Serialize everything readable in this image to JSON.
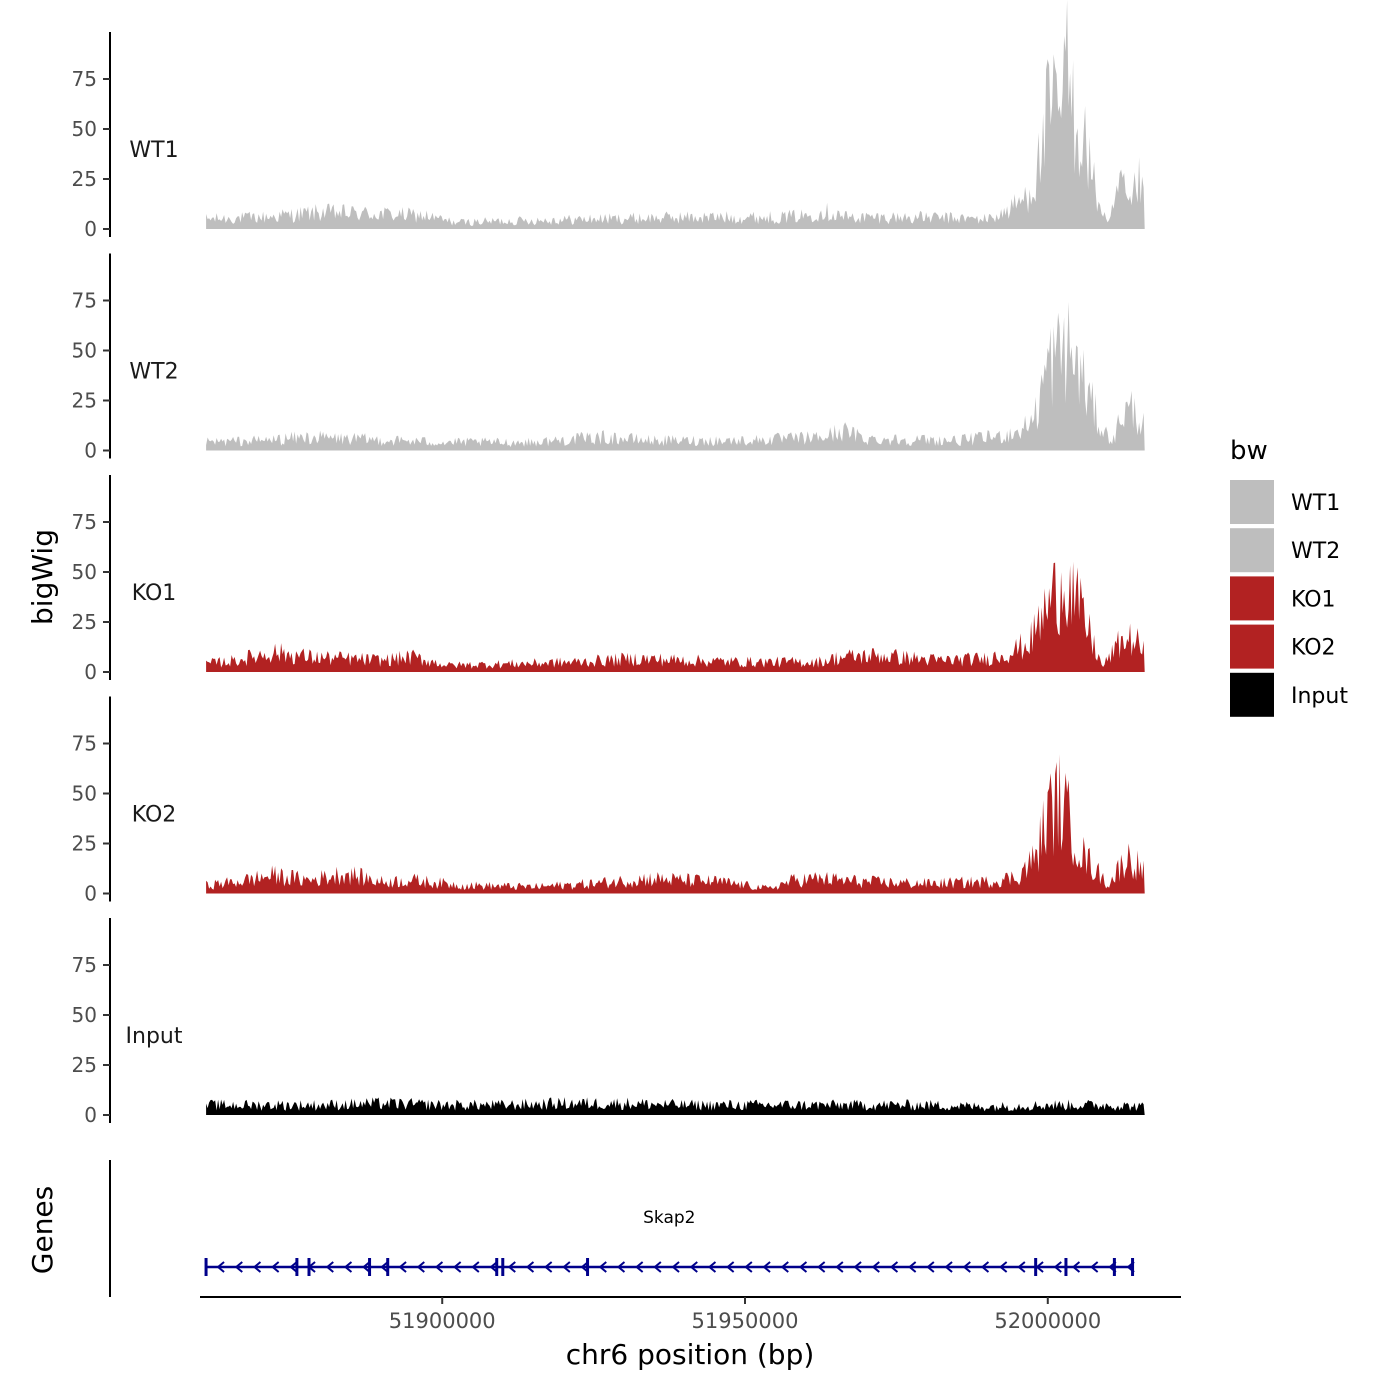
{
  "chart_data": {
    "type": "area",
    "title": "",
    "ylabel": "bigWig",
    "xlabel": "chr6 position (bp)",
    "xlim": [
      51860000,
      52022000
    ],
    "ylim": [
      0,
      98
    ],
    "x_ticks": [
      51900000,
      51950000,
      52000000
    ],
    "x_tick_labels": [
      "51900000",
      "51950000",
      "52000000"
    ],
    "y_ticks": [
      0,
      25,
      50,
      75
    ],
    "y_tick_labels": [
      "0",
      "25",
      "50",
      "75"
    ],
    "signal_range_bp": [
      51861000,
      52016000
    ],
    "series": [
      {
        "name": "WT1",
        "color": "#bebebe",
        "profile": [
          [
            51861000,
            6
          ],
          [
            51870000,
            7
          ],
          [
            51880000,
            10
          ],
          [
            51890000,
            9
          ],
          [
            51897000,
            8
          ],
          [
            51902000,
            4
          ],
          [
            51912000,
            5
          ],
          [
            51925000,
            6
          ],
          [
            51940000,
            7
          ],
          [
            51955000,
            7
          ],
          [
            51960000,
            8
          ],
          [
            51963000,
            11
          ],
          [
            51967000,
            7
          ],
          [
            51980000,
            7
          ],
          [
            51990000,
            6
          ],
          [
            51993000,
            10
          ],
          [
            51996000,
            18
          ],
          [
            51998000,
            30
          ],
          [
            52000000,
            68
          ],
          [
            52002000,
            73
          ],
          [
            52003000,
            96
          ],
          [
            52004000,
            75
          ],
          [
            52006000,
            55
          ],
          [
            52008000,
            20
          ],
          [
            52010000,
            2
          ],
          [
            52012000,
            28
          ],
          [
            52013500,
            12
          ],
          [
            52015000,
            30
          ],
          [
            52016000,
            15
          ]
        ]
      },
      {
        "name": "WT2",
        "color": "#bebebe",
        "profile": [
          [
            51861000,
            5
          ],
          [
            51870000,
            6
          ],
          [
            51878000,
            8
          ],
          [
            51885000,
            7
          ],
          [
            51900000,
            5
          ],
          [
            51915000,
            5
          ],
          [
            51926000,
            8
          ],
          [
            51935000,
            6
          ],
          [
            51950000,
            6
          ],
          [
            51963000,
            8
          ],
          [
            51966000,
            12
          ],
          [
            51970000,
            7
          ],
          [
            51985000,
            6
          ],
          [
            51993000,
            9
          ],
          [
            51996000,
            13
          ],
          [
            51998000,
            22
          ],
          [
            52000000,
            52
          ],
          [
            52002000,
            58
          ],
          [
            52003000,
            63
          ],
          [
            52005000,
            50
          ],
          [
            52007000,
            30
          ],
          [
            52009000,
            12
          ],
          [
            52011000,
            6
          ],
          [
            52012000,
            22
          ],
          [
            52014000,
            25
          ],
          [
            52016000,
            14
          ]
        ]
      },
      {
        "name": "KO1",
        "color": "#b22222",
        "profile": [
          [
            51861000,
            5
          ],
          [
            51866000,
            7
          ],
          [
            51872000,
            12
          ],
          [
            51878000,
            9
          ],
          [
            51884000,
            8
          ],
          [
            51890000,
            7
          ],
          [
            51895000,
            9
          ],
          [
            51901000,
            4
          ],
          [
            51912000,
            5
          ],
          [
            51922000,
            6
          ],
          [
            51932000,
            8
          ],
          [
            51940000,
            7
          ],
          [
            51950000,
            6
          ],
          [
            51962000,
            6
          ],
          [
            51966000,
            9
          ],
          [
            51972000,
            10
          ],
          [
            51982000,
            7
          ],
          [
            51990000,
            8
          ],
          [
            51994000,
            12
          ],
          [
            51997000,
            18
          ],
          [
            52000000,
            40
          ],
          [
            52002000,
            52
          ],
          [
            52003000,
            58
          ],
          [
            52005000,
            40
          ],
          [
            52007000,
            22
          ],
          [
            52009000,
            3
          ],
          [
            52012000,
            18
          ],
          [
            52014000,
            20
          ],
          [
            52016000,
            13
          ]
        ]
      },
      {
        "name": "KO2",
        "color": "#b22222",
        "profile": [
          [
            51861000,
            5
          ],
          [
            51866000,
            7
          ],
          [
            51872000,
            11
          ],
          [
            51878000,
            8
          ],
          [
            51884000,
            12
          ],
          [
            51890000,
            7
          ],
          [
            51895000,
            8
          ],
          [
            51903000,
            5
          ],
          [
            51915000,
            4
          ],
          [
            51925000,
            6
          ],
          [
            51934000,
            9
          ],
          [
            51940000,
            8
          ],
          [
            51946000,
            7
          ],
          [
            51954000,
            3
          ],
          [
            51958000,
            8
          ],
          [
            51962000,
            9
          ],
          [
            51970000,
            7
          ],
          [
            51980000,
            6
          ],
          [
            51990000,
            7
          ],
          [
            51995000,
            10
          ],
          [
            51998000,
            22
          ],
          [
            52000000,
            48
          ],
          [
            52002000,
            56
          ],
          [
            52004000,
            40
          ],
          [
            52006000,
            22
          ],
          [
            52008000,
            14
          ],
          [
            52010000,
            5
          ],
          [
            52013000,
            22
          ],
          [
            52015000,
            17
          ],
          [
            52016000,
            12
          ]
        ]
      },
      {
        "name": "Input",
        "color": "#000000",
        "profile": [
          [
            51861000,
            6
          ],
          [
            51870000,
            6
          ],
          [
            51880000,
            6
          ],
          [
            51890000,
            7
          ],
          [
            51900000,
            6
          ],
          [
            51910000,
            6
          ],
          [
            51920000,
            7
          ],
          [
            51930000,
            7
          ],
          [
            51940000,
            6
          ],
          [
            51950000,
            6
          ],
          [
            51960000,
            6
          ],
          [
            51970000,
            6
          ],
          [
            51980000,
            6
          ],
          [
            51990000,
            5
          ],
          [
            52000000,
            6
          ],
          [
            52010000,
            6
          ],
          [
            52016000,
            5
          ]
        ]
      }
    ],
    "legend": {
      "title": "bw",
      "position": "right",
      "entries": [
        {
          "label": "WT1",
          "color": "#bebebe"
        },
        {
          "label": "WT2",
          "color": "#bebebe"
        },
        {
          "label": "KO1",
          "color": "#b22222"
        },
        {
          "label": "KO2",
          "color": "#b22222"
        },
        {
          "label": "Input",
          "color": "#000000"
        }
      ]
    },
    "gene_track": {
      "label": "Genes",
      "genes": [
        {
          "name": "Skap2",
          "start": 51861000,
          "end": 52014000,
          "strand": "-",
          "color": "#00008b",
          "exons": [
            51861000,
            51876000,
            51878000,
            51888000,
            51891000,
            51909000,
            51910000,
            51924000,
            51998000,
            52003000,
            52011000,
            52014000
          ]
        }
      ]
    }
  }
}
